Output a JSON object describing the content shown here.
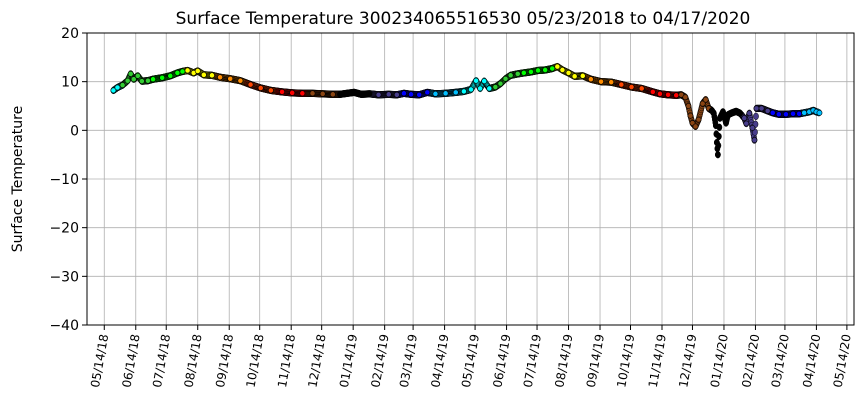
{
  "chart_data": {
    "type": "scatter",
    "title": "Surface Temperature 300234065516530  05/23/2018 to 04/17/2020",
    "ylabel": "Surface Temperature",
    "xlabel": "",
    "ylim": [
      -40,
      20
    ],
    "yticks": [
      -40,
      -30,
      -20,
      -10,
      0,
      10,
      20
    ],
    "xlim": [
      "2018-04-27",
      "2020-05-21"
    ],
    "xticks": [
      {
        "date": "2018-05-14",
        "label": "05/14/18"
      },
      {
        "date": "2018-06-14",
        "label": "06/14/18"
      },
      {
        "date": "2018-07-14",
        "label": "07/14/18"
      },
      {
        "date": "2018-08-14",
        "label": "08/14/18"
      },
      {
        "date": "2018-09-14",
        "label": "09/14/18"
      },
      {
        "date": "2018-10-14",
        "label": "10/14/18"
      },
      {
        "date": "2018-11-14",
        "label": "11/14/18"
      },
      {
        "date": "2018-12-14",
        "label": "12/14/18"
      },
      {
        "date": "2019-01-14",
        "label": "01/14/19"
      },
      {
        "date": "2019-02-14",
        "label": "02/14/19"
      },
      {
        "date": "2019-03-14",
        "label": "03/14/19"
      },
      {
        "date": "2019-04-14",
        "label": "04/14/19"
      },
      {
        "date": "2019-05-14",
        "label": "05/14/19"
      },
      {
        "date": "2019-06-14",
        "label": "06/14/19"
      },
      {
        "date": "2019-07-14",
        "label": "07/14/19"
      },
      {
        "date": "2019-08-14",
        "label": "08/14/19"
      },
      {
        "date": "2019-09-14",
        "label": "09/14/19"
      },
      {
        "date": "2019-10-14",
        "label": "10/14/19"
      },
      {
        "date": "2019-11-14",
        "label": "11/14/19"
      },
      {
        "date": "2019-12-14",
        "label": "12/14/19"
      },
      {
        "date": "2020-01-14",
        "label": "01/14/20"
      },
      {
        "date": "2020-02-14",
        "label": "02/14/20"
      },
      {
        "date": "2020-03-14",
        "label": "03/14/20"
      },
      {
        "date": "2020-04-14",
        "label": "04/14/20"
      },
      {
        "date": "2020-05-14",
        "label": "05/14/20"
      }
    ],
    "grid": true,
    "legend": "none",
    "monthly_colors": {
      "01": "#000000",
      "02": "#483d8b",
      "03": "#0000ff",
      "04": "#00bfff",
      "05": "#00ffff",
      "06": "#32cd32",
      "07": "#00ff00",
      "08": "#ffff00",
      "09": "#ff8c00",
      "10": "#ff4500",
      "11": "#ff0000",
      "12": "#8b4513"
    },
    "points": [
      {
        "x": "2018-05-23",
        "y": 8.2
      },
      {
        "x": "2018-05-27",
        "y": 8.8
      },
      {
        "x": "2018-06-01",
        "y": 9.3
      },
      {
        "x": "2018-06-06",
        "y": 10.2
      },
      {
        "x": "2018-06-09",
        "y": 11.6
      },
      {
        "x": "2018-06-12",
        "y": 10.5
      },
      {
        "x": "2018-06-16",
        "y": 11.2
      },
      {
        "x": "2018-06-20",
        "y": 10.1
      },
      {
        "x": "2018-06-26",
        "y": 10.2
      },
      {
        "x": "2018-07-01",
        "y": 10.5
      },
      {
        "x": "2018-07-10",
        "y": 10.8
      },
      {
        "x": "2018-07-18",
        "y": 11.2
      },
      {
        "x": "2018-07-25",
        "y": 11.8
      },
      {
        "x": "2018-07-30",
        "y": 12.1
      },
      {
        "x": "2018-08-04",
        "y": 12.3
      },
      {
        "x": "2018-08-10",
        "y": 11.8
      },
      {
        "x": "2018-08-14",
        "y": 12.2
      },
      {
        "x": "2018-08-20",
        "y": 11.4
      },
      {
        "x": "2018-08-28",
        "y": 11.3
      },
      {
        "x": "2018-09-05",
        "y": 10.9
      },
      {
        "x": "2018-09-15",
        "y": 10.6
      },
      {
        "x": "2018-09-25",
        "y": 10.2
      },
      {
        "x": "2018-10-05",
        "y": 9.4
      },
      {
        "x": "2018-10-15",
        "y": 8.7
      },
      {
        "x": "2018-10-25",
        "y": 8.2
      },
      {
        "x": "2018-11-05",
        "y": 7.9
      },
      {
        "x": "2018-11-15",
        "y": 7.7
      },
      {
        "x": "2018-11-25",
        "y": 7.6
      },
      {
        "x": "2018-12-05",
        "y": 7.6
      },
      {
        "x": "2018-12-15",
        "y": 7.5
      },
      {
        "x": "2018-12-25",
        "y": 7.4
      },
      {
        "x": "2019-01-01",
        "y": 7.4
      },
      {
        "x": "2019-01-08",
        "y": 7.6
      },
      {
        "x": "2019-01-15",
        "y": 7.8
      },
      {
        "x": "2019-01-22",
        "y": 7.4
      },
      {
        "x": "2019-01-30",
        "y": 7.5
      },
      {
        "x": "2019-02-08",
        "y": 7.3
      },
      {
        "x": "2019-02-18",
        "y": 7.4
      },
      {
        "x": "2019-02-26",
        "y": 7.3
      },
      {
        "x": "2019-03-05",
        "y": 7.6
      },
      {
        "x": "2019-03-12",
        "y": 7.4
      },
      {
        "x": "2019-03-20",
        "y": 7.3
      },
      {
        "x": "2019-03-28",
        "y": 7.8
      },
      {
        "x": "2019-04-05",
        "y": 7.5
      },
      {
        "x": "2019-04-15",
        "y": 7.6
      },
      {
        "x": "2019-04-25",
        "y": 7.8
      },
      {
        "x": "2019-05-03",
        "y": 8.0
      },
      {
        "x": "2019-05-10",
        "y": 8.4
      },
      {
        "x": "2019-05-15",
        "y": 10.2
      },
      {
        "x": "2019-05-19",
        "y": 8.6
      },
      {
        "x": "2019-05-23",
        "y": 10.1
      },
      {
        "x": "2019-05-28",
        "y": 8.6
      },
      {
        "x": "2019-06-03",
        "y": 8.9
      },
      {
        "x": "2019-06-08",
        "y": 9.6
      },
      {
        "x": "2019-06-13",
        "y": 10.6
      },
      {
        "x": "2019-06-18",
        "y": 11.3
      },
      {
        "x": "2019-06-25",
        "y": 11.6
      },
      {
        "x": "2019-07-01",
        "y": 11.8
      },
      {
        "x": "2019-07-08",
        "y": 12.0
      },
      {
        "x": "2019-07-15",
        "y": 12.3
      },
      {
        "x": "2019-07-22",
        "y": 12.4
      },
      {
        "x": "2019-07-29",
        "y": 12.7
      },
      {
        "x": "2019-08-03",
        "y": 13.1
      },
      {
        "x": "2019-08-08",
        "y": 12.4
      },
      {
        "x": "2019-08-14",
        "y": 11.8
      },
      {
        "x": "2019-08-20",
        "y": 11.1
      },
      {
        "x": "2019-08-28",
        "y": 11.2
      },
      {
        "x": "2019-09-05",
        "y": 10.5
      },
      {
        "x": "2019-09-15",
        "y": 10.0
      },
      {
        "x": "2019-09-25",
        "y": 9.9
      },
      {
        "x": "2019-10-05",
        "y": 9.4
      },
      {
        "x": "2019-10-15",
        "y": 8.9
      },
      {
        "x": "2019-10-25",
        "y": 8.6
      },
      {
        "x": "2019-11-05",
        "y": 7.9
      },
      {
        "x": "2019-11-12",
        "y": 7.5
      },
      {
        "x": "2019-11-20",
        "y": 7.3
      },
      {
        "x": "2019-11-28",
        "y": 7.2
      },
      {
        "x": "2019-12-03",
        "y": 7.3
      },
      {
        "x": "2019-12-07",
        "y": 6.8
      },
      {
        "x": "2019-12-10",
        "y": 5.0
      },
      {
        "x": "2019-12-12",
        "y": 3.0
      },
      {
        "x": "2019-12-14",
        "y": 1.5
      },
      {
        "x": "2019-12-17",
        "y": 0.8
      },
      {
        "x": "2019-12-20",
        "y": 2.2
      },
      {
        "x": "2019-12-24",
        "y": 5.5
      },
      {
        "x": "2019-12-27",
        "y": 6.3
      },
      {
        "x": "2019-12-30",
        "y": 4.5
      },
      {
        "x": "2020-01-02",
        "y": 4.1
      },
      {
        "x": "2020-01-04",
        "y": 3.5
      },
      {
        "x": "2020-01-06",
        "y": 1.0
      },
      {
        "x": "2020-01-07",
        "y": -2.5
      },
      {
        "x": "2020-01-08",
        "y": -5.0
      },
      {
        "x": "2020-01-10",
        "y": 2.5
      },
      {
        "x": "2020-01-13",
        "y": 3.8
      },
      {
        "x": "2020-01-16",
        "y": 1.5
      },
      {
        "x": "2020-01-18",
        "y": 3.2
      },
      {
        "x": "2020-01-22",
        "y": 3.6
      },
      {
        "x": "2020-01-26",
        "y": 3.9
      },
      {
        "x": "2020-01-30",
        "y": 3.5
      },
      {
        "x": "2020-02-03",
        "y": 2.5
      },
      {
        "x": "2020-02-05",
        "y": 1.4
      },
      {
        "x": "2020-02-08",
        "y": 3.5
      },
      {
        "x": "2020-02-11",
        "y": 0.5
      },
      {
        "x": "2020-02-13",
        "y": -2.0
      },
      {
        "x": "2020-02-15",
        "y": 4.5
      },
      {
        "x": "2020-02-20",
        "y": 4.5
      },
      {
        "x": "2020-02-26",
        "y": 4.0
      },
      {
        "x": "2020-03-02",
        "y": 3.6
      },
      {
        "x": "2020-03-08",
        "y": 3.3
      },
      {
        "x": "2020-03-15",
        "y": 3.3
      },
      {
        "x": "2020-03-22",
        "y": 3.4
      },
      {
        "x": "2020-03-28",
        "y": 3.4
      },
      {
        "x": "2020-04-02",
        "y": 3.6
      },
      {
        "x": "2020-04-07",
        "y": 3.8
      },
      {
        "x": "2020-04-11",
        "y": 4.1
      },
      {
        "x": "2020-04-14",
        "y": 3.8
      },
      {
        "x": "2020-04-17",
        "y": 3.6
      }
    ]
  }
}
